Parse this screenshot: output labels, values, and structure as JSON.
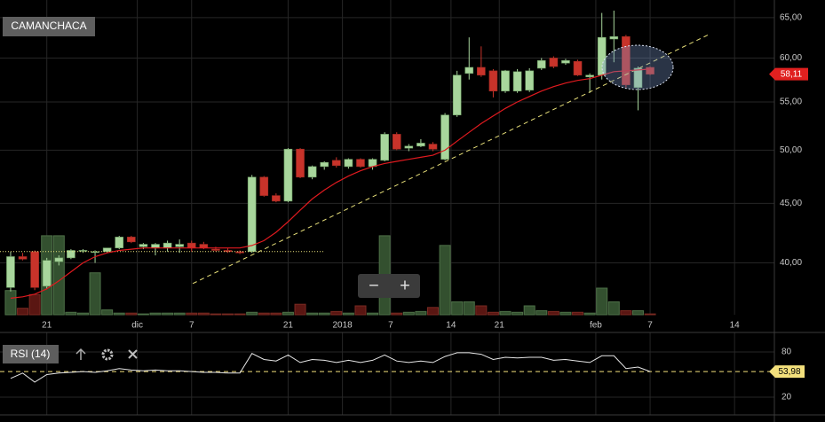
{
  "chart_data": [
    {
      "type": "candlestick",
      "title": "CAMANCHACA",
      "x": [
        0,
        1,
        2,
        3,
        4,
        5,
        6,
        7,
        8,
        9,
        10,
        11,
        12,
        13,
        14,
        15,
        16,
        17,
        18,
        19,
        20,
        21,
        22,
        23,
        24,
        25,
        26,
        27,
        28,
        29,
        30,
        31,
        32,
        33,
        34,
        35,
        36,
        37,
        38,
        39,
        40,
        41,
        42,
        43,
        44,
        45,
        46,
        47,
        48,
        49,
        50,
        51,
        52,
        53
      ],
      "open": [
        38.1,
        40.5,
        40.9,
        38.2,
        40.1,
        40.4,
        41.0,
        40.9,
        40.9,
        41.2,
        42.1,
        41.3,
        41.2,
        41.2,
        41.3,
        41.6,
        41.5,
        41.1,
        41.0,
        40.9,
        40.9,
        47.4,
        45.7,
        45.2,
        50.1,
        47.4,
        48.4,
        49.0,
        48.4,
        49.1,
        48.4,
        49.0,
        51.6,
        50.2,
        50.4,
        50.6,
        49.1,
        53.6,
        58.2,
        58.9,
        58.5,
        56.2,
        56.2,
        56.3,
        58.8,
        60.0,
        59.4,
        59.6,
        57.8,
        58.0,
        62.3,
        62.6,
        56.6,
        58.9
      ],
      "high": [
        40.9,
        40.8,
        41.0,
        40.4,
        40.6,
        41.1,
        41.1,
        41.0,
        41.2,
        42.2,
        42.2,
        41.6,
        41.6,
        41.8,
        41.9,
        41.8,
        41.7,
        41.3,
        41.2,
        41.0,
        47.6,
        47.5,
        45.9,
        50.2,
        50.2,
        48.5,
        48.9,
        49.3,
        49.2,
        49.2,
        49.2,
        51.8,
        51.8,
        50.6,
        51.1,
        50.8,
        53.8,
        58.5,
        62.5,
        61.4,
        58.7,
        58.6,
        58.7,
        58.8,
        60.0,
        60.2,
        59.9,
        59.8,
        58.2,
        65.6,
        65.9,
        62.8,
        59.0,
        59.0
      ],
      "low": [
        37.8,
        40.2,
        37.9,
        38.0,
        39.8,
        40.3,
        40.8,
        40.0,
        40.8,
        41.1,
        41.6,
        41.1,
        40.6,
        40.9,
        40.8,
        40.9,
        41.1,
        40.9,
        40.8,
        40.7,
        40.8,
        45.6,
        45.1,
        45.1,
        47.3,
        47.2,
        48.1,
        48.3,
        48.2,
        48.3,
        48.1,
        48.9,
        50.0,
        49.9,
        50.3,
        49.9,
        49.0,
        53.4,
        57.5,
        57.8,
        55.5,
        56.0,
        56.0,
        56.1,
        58.6,
        58.8,
        59.2,
        57.9,
        56.0,
        57.5,
        59.5,
        56.6,
        54.1,
        58.0
      ],
      "close": [
        40.5,
        40.3,
        38.1,
        40.2,
        40.4,
        41.0,
        41.0,
        40.9,
        41.2,
        42.1,
        41.7,
        41.5,
        41.5,
        41.6,
        41.5,
        41.2,
        41.2,
        41.0,
        40.9,
        40.8,
        47.4,
        45.7,
        45.2,
        50.1,
        47.4,
        48.4,
        48.8,
        48.5,
        49.1,
        48.4,
        49.1,
        51.6,
        50.1,
        50.4,
        50.7,
        50.1,
        53.6,
        58.0,
        58.9,
        58.0,
        56.2,
        58.5,
        58.4,
        58.5,
        59.7,
        59.0,
        59.7,
        58.0,
        58.0,
        62.5,
        62.6,
        56.9,
        58.8,
        58.11
      ],
      "up_color": "#a8d69c",
      "down_color": "#c8332a",
      "moving_average": {
        "color": "#e01a1f",
        "values": [
          37.3,
          37.4,
          37.6,
          38.0,
          38.6,
          39.3,
          40.0,
          40.5,
          40.8,
          41.0,
          41.1,
          41.2,
          41.2,
          41.2,
          41.2,
          41.2,
          41.2,
          41.2,
          41.2,
          41.2,
          41.4,
          41.8,
          42.5,
          43.4,
          44.4,
          45.4,
          46.2,
          46.9,
          47.5,
          48.0,
          48.4,
          48.7,
          48.9,
          49.1,
          49.3,
          49.5,
          50.0,
          50.9,
          51.8,
          52.7,
          53.5,
          54.3,
          55.0,
          55.6,
          56.2,
          56.7,
          57.1,
          57.4,
          57.6,
          58.0,
          58.4,
          58.5,
          58.6,
          58.7
        ]
      },
      "volume": {
        "values": [
          30,
          8,
          25,
          98,
          98,
          3,
          2,
          52,
          6,
          2,
          2,
          1,
          2,
          2,
          2,
          2,
          2,
          1,
          1,
          1,
          3,
          2,
          2,
          3,
          13,
          2,
          2,
          4,
          2,
          11,
          2,
          98,
          2,
          3,
          4,
          9,
          86,
          16,
          16,
          11,
          3,
          4,
          3,
          11,
          5,
          4,
          3,
          3,
          2,
          33,
          16,
          5,
          5,
          1
        ],
        "ylim": [
          0,
          110
        ],
        "up_color": "#33502f",
        "down_color": "#5a1612"
      },
      "trendline": {
        "color": "#e8e07a",
        "x": [
          15.1,
          57.8
        ],
        "y": [
          38.4,
          62.8
        ]
      },
      "support_line": {
        "color": "#e8e07a",
        "x": [
          -0.88,
          26
        ],
        "y": [
          40.9,
          40.9
        ]
      },
      "last_price": {
        "value": 58.11,
        "label": "58,11",
        "color": "#e0201f"
      },
      "xlim": [
        -0.88,
        63.3
      ],
      "xticks": [
        {
          "value": 3,
          "label": "21"
        },
        {
          "value": 10.5,
          "label": "dic"
        },
        {
          "value": 15,
          "label": "7"
        },
        {
          "value": 23,
          "label": "21"
        },
        {
          "value": 27.5,
          "label": "2018"
        },
        {
          "value": 31.5,
          "label": "7"
        },
        {
          "value": 36.5,
          "label": "14"
        },
        {
          "value": 40.5,
          "label": "21"
        },
        {
          "value": 48.5,
          "label": "feb"
        },
        {
          "value": 53,
          "label": "7"
        },
        {
          "value": 60,
          "label": "14"
        }
      ],
      "ylim": [
        36.1,
        67.3
      ],
      "log_y": true,
      "yticks": [
        {
          "value": 65,
          "label": "65,00"
        },
        {
          "value": 60,
          "label": "60,00"
        },
        {
          "value": 55,
          "label": "55,00"
        },
        {
          "value": 50,
          "label": "50,00"
        },
        {
          "value": 45,
          "label": "45,00"
        },
        {
          "value": 40,
          "label": "40,00"
        }
      ],
      "grid": true,
      "zoom_buttons": [
        "−",
        "+"
      ]
    },
    {
      "type": "line",
      "title": "RSI (14)",
      "color": "#e6e6e6",
      "values": [
        45,
        52,
        40,
        50,
        52,
        53,
        54,
        53,
        55,
        58,
        56,
        55,
        56,
        55,
        55,
        54,
        53,
        53,
        52,
        52,
        78,
        70,
        68,
        76,
        66,
        70,
        69,
        66,
        69,
        66,
        69,
        76,
        68,
        66,
        68,
        66,
        74,
        79,
        79,
        77,
        70,
        73,
        72,
        73,
        73,
        69,
        70,
        68,
        66,
        75,
        75,
        58,
        60,
        53.98
      ],
      "last_value": {
        "value": 53.98,
        "label": "53,98",
        "color": "#f3e07c"
      },
      "ylim": [
        -3.5,
        105.9
      ],
      "yticks": [
        80,
        20
      ],
      "grid": true
    }
  ]
}
